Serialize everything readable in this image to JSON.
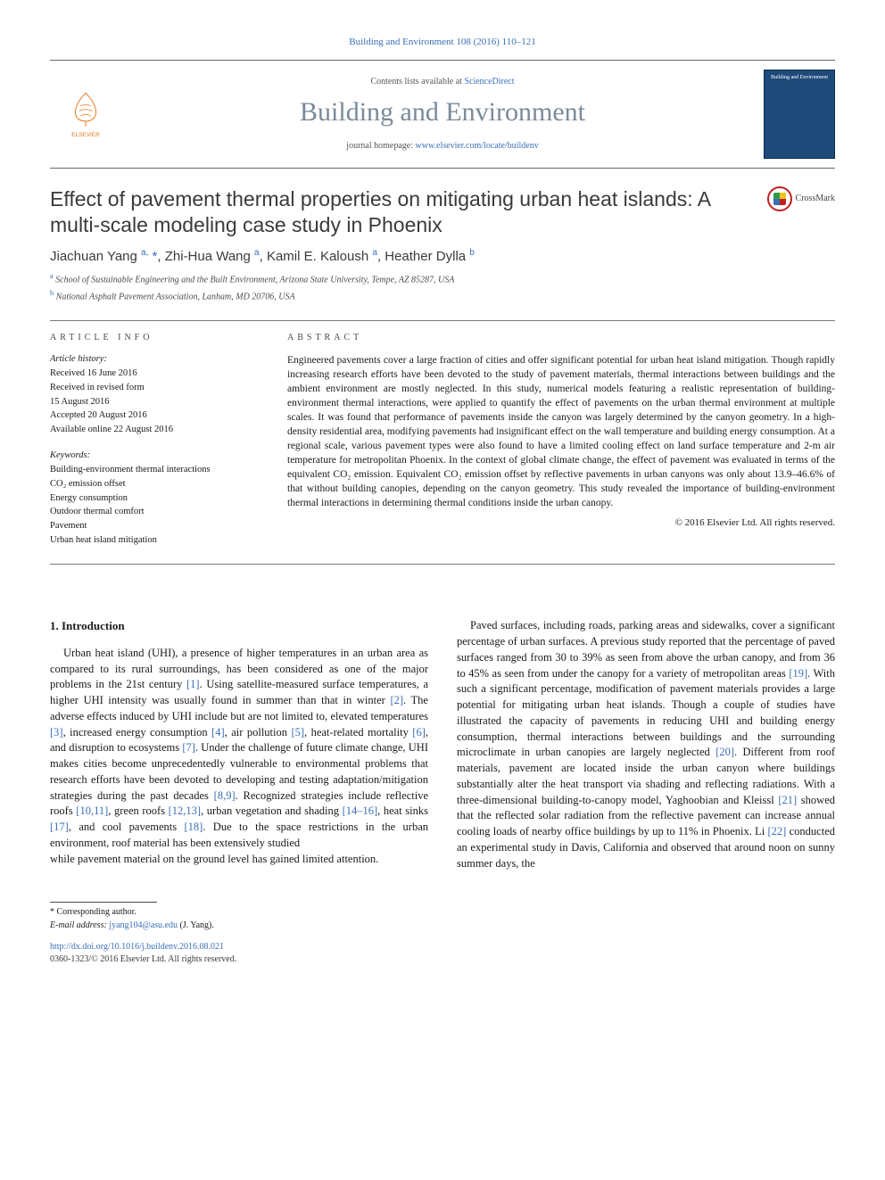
{
  "header": {
    "topcite": "Building and Environment 108 (2016) 110–121",
    "contentsline_pre": "Contents lists available at ",
    "contentsline_link": "ScienceDirect",
    "journal_title": "Building and Environment",
    "homepage_pre": "journal homepage: ",
    "homepage_url": "www.elsevier.com/locate/buildenv",
    "publisher": "ELSEVIER",
    "thumb_caption": "Building and Environment"
  },
  "title": "Effect of pavement thermal properties on mitigating urban heat islands: A multi-scale modeling case study in Phoenix",
  "crossmark": "CrossMark",
  "authors_html": "Jiachuan Yang <sup>a,</sup> <span class='ast'>*</span>, Zhi-Hua Wang <sup>a</sup>, Kamil E. Kaloush <sup>a</sup>, Heather Dylla <sup>b</sup>",
  "affiliations": [
    {
      "sup": "a",
      "text": "School of Sustainable Engineering and the Built Environment, Arizona State University, Tempe, AZ 85287, USA"
    },
    {
      "sup": "b",
      "text": "National Asphalt Pavement Association, Lanham, MD 20706, USA"
    }
  ],
  "info": {
    "heading": "ARTICLE INFO",
    "history_label": "Article history:",
    "history": [
      "Received 16 June 2016",
      "Received in revised form",
      "15 August 2016",
      "Accepted 20 August 2016",
      "Available online 22 August 2016"
    ],
    "keywords_label": "Keywords:",
    "keywords": [
      "Building-environment thermal interactions",
      "CO₂ emission offset",
      "Energy consumption",
      "Outdoor thermal comfort",
      "Pavement",
      "Urban heat island mitigation"
    ]
  },
  "abstract": {
    "heading": "ABSTRACT",
    "text": "Engineered pavements cover a large fraction of cities and offer significant potential for urban heat island mitigation. Though rapidly increasing research efforts have been devoted to the study of pavement materials, thermal interactions between buildings and the ambient environment are mostly neglected. In this study, numerical models featuring a realistic representation of building-environment thermal interactions, were applied to quantify the effect of pavements on the urban thermal environment at multiple scales. It was found that performance of pavements inside the canyon was largely determined by the canyon geometry. In a high-density residential area, modifying pavements had insignificant effect on the wall temperature and building energy consumption. At a regional scale, various pavement types were also found to have a limited cooling effect on land surface temperature and 2-m air temperature for metropolitan Phoenix. In the context of global climate change, the effect of pavement was evaluated in terms of the equivalent CO₂ emission. Equivalent CO₂ emission offset by reflective pavements in urban canyons was only about 13.9–46.6% of that without building canopies, depending on the canyon geometry. This study revealed the importance of building-environment thermal interactions in determining thermal conditions inside the urban canopy.",
    "copyright": "© 2016 Elsevier Ltd. All rights reserved."
  },
  "body": {
    "sec1_heading": "1. Introduction",
    "p1": "Urban heat island (UHI), a presence of higher temperatures in an urban area as compared to its rural surroundings, has been considered as one of the major problems in the 21st century [1]. Using satellite-measured surface temperatures, a higher UHI intensity was usually found in summer than that in winter [2]. The adverse effects induced by UHI include but are not limited to, elevated temperatures [3], increased energy consumption [4], air pollution [5], heat-related mortality [6], and disruption to ecosystems [7]. Under the challenge of future climate change, UHI makes cities become unprecedentedly vulnerable to environmental problems that research efforts have been devoted to developing and testing adaptation/mitigation strategies during the past decades [8,9]. Recognized strategies include reflective roofs [10,11], green roofs [12,13], urban vegetation and shading [14–16], heat sinks [17], and cool pavements [18]. Due to the space restrictions in the urban environment, roof material has been extensively studied",
    "p2": "while pavement material on the ground level has gained limited attention.",
    "p3": "Paved surfaces, including roads, parking areas and sidewalks, cover a significant percentage of urban surfaces. A previous study reported that the percentage of paved surfaces ranged from 30 to 39% as seen from above the urban canopy, and from 36 to 45% as seen from under the canopy for a variety of metropolitan areas [19]. With such a significant percentage, modification of pavement materials provides a large potential for mitigating urban heat islands. Though a couple of studies have illustrated the capacity of pavements in reducing UHI and building energy consumption, thermal interactions between buildings and the surrounding microclimate in urban canopies are largely neglected [20]. Different from roof materials, pavement are located inside the urban canyon where buildings substantially alter the heat transport via shading and reflecting radiations. With a three-dimensional building-to-canopy model, Yaghoobian and Kleissl [21] showed that the reflected solar radiation from the reflective pavement can increase annual cooling loads of nearby office buildings by up to 11% in Phoenix. Li [22] conducted an experimental study in Davis, California and observed that around noon on sunny summer days, the"
  },
  "footer": {
    "corr_label": "* Corresponding author.",
    "email_label": "E-mail address: ",
    "email": "jyang104@asu.edu",
    "email_suffix": " (J. Yang).",
    "doi": "http://dx.doi.org/10.1016/j.buildenv.2016.08.021",
    "issn_line": "0360-1323/© 2016 Elsevier Ltd. All rights reserved."
  },
  "style": {
    "link_color": "#3b6fb6",
    "journal_title_color": "#7a8a99",
    "rule_color": "#7a7a7a",
    "body_width": 992,
    "body_height": 1323,
    "title_fontsize": 23,
    "jtitle_fontsize": 30,
    "authors_fontsize": 15,
    "body_fontsize": 12.5,
    "abstract_fontsize": 11.5,
    "info_fontsize": 10.5
  },
  "refs": [
    "[1]",
    "[2]",
    "[3]",
    "[4]",
    "[5]",
    "[6]",
    "[7]",
    "[8,9]",
    "[10,11]",
    "[12,13]",
    "[14–16]",
    "[17]",
    "[18]",
    "[19]",
    "[20]",
    "[21]",
    "[22]"
  ]
}
